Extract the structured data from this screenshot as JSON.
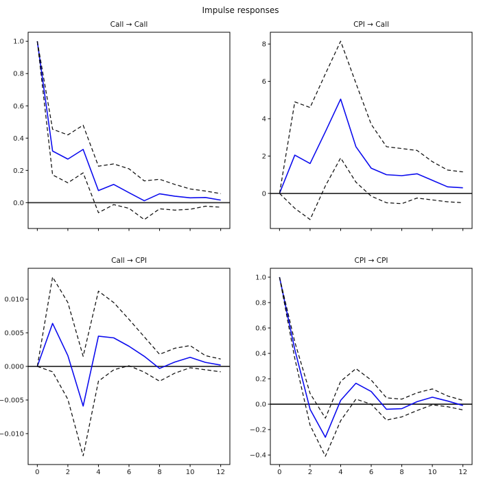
{
  "figure": {
    "title": "Impulse responses"
  },
  "colors": {
    "irf": "#0b0bee",
    "ci": "#0d0d0d",
    "zero": "#2e2e2e",
    "axis": "#000000",
    "text": "#1a1a1a"
  },
  "chart_data": [
    {
      "type": "line",
      "title": "Call → Call",
      "row": 0,
      "col": 0,
      "x": [
        0,
        1,
        2,
        3,
        4,
        5,
        6,
        7,
        8,
        9,
        10,
        11,
        12
      ],
      "xlim": [
        -0.6,
        12.6
      ],
      "ylim": [
        -0.16,
        1.056
      ],
      "xticks": [
        0,
        2,
        4,
        6,
        8,
        10,
        12
      ],
      "xtick_labels": [
        "0",
        "2",
        "4",
        "6",
        "8",
        "10",
        "12"
      ],
      "show_xtick_labels": false,
      "yticks": [
        0.0,
        0.2,
        0.4,
        0.6,
        0.8,
        1.0
      ],
      "ytick_labels": [
        "0.0",
        "0.2",
        "0.4",
        "0.6",
        "0.8",
        "1.0"
      ],
      "zero_line": true,
      "grid": false,
      "legend": null,
      "series": [
        {
          "name": "irf",
          "style": "solid",
          "color_key": "irf",
          "values": [
            1.0,
            0.32,
            0.27,
            0.33,
            0.075,
            0.113,
            0.062,
            0.012,
            0.055,
            0.04,
            0.03,
            0.032,
            0.016
          ]
        },
        {
          "name": "ci_upper",
          "style": "dashed",
          "color_key": "ci",
          "values": [
            1.0,
            0.455,
            0.42,
            0.48,
            0.226,
            0.24,
            0.21,
            0.135,
            0.145,
            0.113,
            0.085,
            0.072,
            0.056
          ]
        },
        {
          "name": "ci_lower",
          "style": "dashed",
          "color_key": "ci",
          "values": [
            1.0,
            0.172,
            0.123,
            0.185,
            -0.062,
            -0.012,
            -0.035,
            -0.105,
            -0.038,
            -0.046,
            -0.041,
            -0.022,
            -0.028
          ]
        }
      ]
    },
    {
      "type": "line",
      "title": "CPI → Call",
      "row": 0,
      "col": 1,
      "x": [
        0,
        1,
        2,
        3,
        4,
        5,
        6,
        7,
        8,
        9,
        10,
        11,
        12
      ],
      "xlim": [
        -0.6,
        12.6
      ],
      "ylim": [
        -1.88,
        8.63
      ],
      "xticks": [
        0,
        2,
        4,
        6,
        8,
        10,
        12
      ],
      "xtick_labels": [
        "0",
        "2",
        "4",
        "6",
        "8",
        "10",
        "12"
      ],
      "show_xtick_labels": false,
      "yticks": [
        0,
        2,
        4,
        6,
        8
      ],
      "ytick_labels": [
        "0",
        "2",
        "4",
        "6",
        "8"
      ],
      "zero_line": true,
      "grid": false,
      "legend": null,
      "series": [
        {
          "name": "irf",
          "style": "solid",
          "color_key": "irf",
          "values": [
            0,
            2.05,
            1.6,
            3.3,
            5.05,
            2.5,
            1.35,
            1.0,
            0.95,
            1.05,
            0.7,
            0.35,
            0.3
          ]
        },
        {
          "name": "ci_upper",
          "style": "dashed",
          "color_key": "ci",
          "values": [
            0,
            4.9,
            4.6,
            6.4,
            8.15,
            5.9,
            3.7,
            2.5,
            2.4,
            2.3,
            1.7,
            1.25,
            1.15
          ]
        },
        {
          "name": "ci_lower",
          "style": "dashed",
          "color_key": "ci",
          "values": [
            0,
            -0.8,
            -1.4,
            0.4,
            1.9,
            0.6,
            -0.15,
            -0.5,
            -0.55,
            -0.25,
            -0.35,
            -0.45,
            -0.5
          ]
        }
      ]
    },
    {
      "type": "line",
      "title": "Call → CPI",
      "row": 1,
      "col": 0,
      "x": [
        0,
        1,
        2,
        3,
        4,
        5,
        6,
        7,
        8,
        9,
        10,
        11,
        12
      ],
      "xlim": [
        -0.6,
        12.6
      ],
      "ylim": [
        -0.0146,
        0.0146
      ],
      "xticks": [
        0,
        2,
        4,
        6,
        8,
        10,
        12
      ],
      "xtick_labels": [
        "0",
        "2",
        "4",
        "6",
        "8",
        "10",
        "12"
      ],
      "show_xtick_labels": true,
      "yticks": [
        -0.01,
        -0.005,
        0.0,
        0.005,
        0.01
      ],
      "ytick_labels": [
        "−0.010",
        "−0.005",
        "0.000",
        "0.005",
        "0.010"
      ],
      "zero_line": true,
      "grid": false,
      "legend": null,
      "series": [
        {
          "name": "irf",
          "style": "solid",
          "color_key": "irf",
          "values": [
            0,
            0.0064,
            0.0016,
            -0.0059,
            0.0045,
            0.00425,
            0.003,
            0.0015,
            -0.0003,
            0.00065,
            0.00135,
            0.0006,
            0.0002
          ]
        },
        {
          "name": "ci_upper",
          "style": "dashed",
          "color_key": "ci",
          "values": [
            0,
            0.0133,
            0.0095,
            0.0015,
            0.0112,
            0.0095,
            0.007,
            0.0044,
            0.0018,
            0.0027,
            0.0031,
            0.0016,
            0.0011
          ]
        },
        {
          "name": "ci_lower",
          "style": "dashed",
          "color_key": "ci",
          "values": [
            0,
            -0.0008,
            -0.0049,
            -0.0133,
            -0.0022,
            -0.0005,
            0.0001,
            -0.00085,
            -0.0022,
            -0.001,
            -0.0002,
            -0.0005,
            -0.0008
          ]
        }
      ]
    },
    {
      "type": "line",
      "title": "CPI → CPI",
      "row": 1,
      "col": 1,
      "x": [
        0,
        1,
        2,
        3,
        4,
        5,
        6,
        7,
        8,
        9,
        10,
        11,
        12
      ],
      "xlim": [
        -0.6,
        12.6
      ],
      "ylim": [
        -0.475,
        1.07
      ],
      "xticks": [
        0,
        2,
        4,
        6,
        8,
        10,
        12
      ],
      "xtick_labels": [
        "0",
        "2",
        "4",
        "6",
        "8",
        "10",
        "12"
      ],
      "show_xtick_labels": true,
      "yticks": [
        -0.4,
        -0.2,
        0.0,
        0.2,
        0.4,
        0.6,
        0.8,
        1.0
      ],
      "ytick_labels": [
        "−0.4",
        "−0.2",
        "0.0",
        "0.2",
        "0.4",
        "0.6",
        "0.8",
        "1.0"
      ],
      "zero_line": true,
      "grid": false,
      "legend": null,
      "series": [
        {
          "name": "irf",
          "style": "solid",
          "color_key": "irf",
          "values": [
            1.0,
            0.43,
            -0.04,
            -0.26,
            0.03,
            0.165,
            0.1,
            -0.04,
            -0.035,
            0.02,
            0.055,
            0.025,
            -0.01
          ]
        },
        {
          "name": "ci_upper",
          "style": "dashed",
          "color_key": "ci",
          "values": [
            1.0,
            0.49,
            0.085,
            -0.11,
            0.18,
            0.28,
            0.19,
            0.05,
            0.04,
            0.09,
            0.12,
            0.065,
            0.03
          ]
        },
        {
          "name": "ci_lower",
          "style": "dashed",
          "color_key": "ci",
          "values": [
            1.0,
            0.36,
            -0.165,
            -0.41,
            -0.13,
            0.04,
            0.0,
            -0.125,
            -0.1,
            -0.05,
            -0.005,
            -0.02,
            -0.045
          ]
        }
      ]
    }
  ]
}
